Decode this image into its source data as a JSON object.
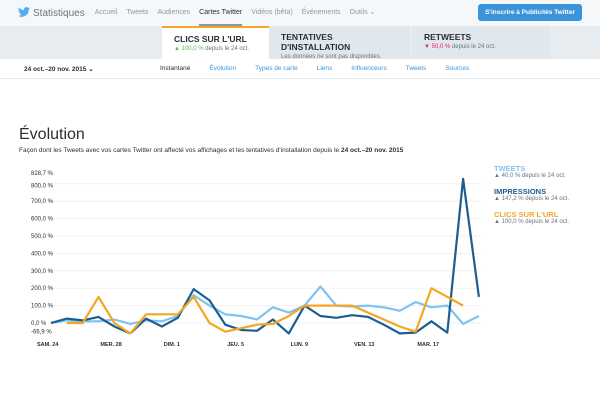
{
  "header": {
    "title": "Statistiques",
    "nav": [
      "Accueil",
      "Tweets",
      "Audiences",
      "Cartes Twitter",
      "Vidéos (bêta)",
      "Événements",
      "Outils ⌄"
    ],
    "active": "Cartes Twitter",
    "cta": "S'inscrire à Publicités Twitter"
  },
  "cards": [
    {
      "title": "CLICS SUR L'URL",
      "delta": "▲ 100,0 %",
      "rest": " depuis le 24 oct."
    },
    {
      "title": "TENTATIVES D'INSTALLATION",
      "rest": "Les données ne sont pas disponibles."
    },
    {
      "title": "RETWEETS",
      "delta": "▼ 50,0 %",
      "rest": " depuis le 24 oct."
    }
  ],
  "subnav": {
    "date": "24 oct.–20 nov. 2015 ⌄",
    "tabs": [
      "Instantané",
      "Évolution",
      "Types de carte",
      "Liens",
      "Influenceurs",
      "Tweets",
      "Sources"
    ]
  },
  "section": {
    "title": "Évolution",
    "desc_pre": "Façon dont les Tweets avec vos cartes Twitter ont affecté vos affichages et les tentatives d'installation depuis le ",
    "desc_bold": "24 oct.–20 nov. 2015"
  },
  "legend": [
    {
      "name": "TWEETS",
      "text": "▲ 40,0 % depuis le 24 oct.",
      "color": "#7fc4f0"
    },
    {
      "name": "IMPRESSIONS",
      "text": "▲ 147,2 % depuis le 24 oct.",
      "color": "#1d5e92"
    },
    {
      "name": "CLICS SUR L'URL",
      "text": "▲ 100,0 % depuis le 24 oct.",
      "color": "#f5a623"
    }
  ],
  "chart_data": {
    "type": "line",
    "ylim": [
      -66.9,
      828.7
    ],
    "yticks": [
      {
        "v": 828.7,
        "l": "828,7 %"
      },
      {
        "v": 800,
        "l": "800,0 %"
      },
      {
        "v": 700,
        "l": "700,0 %"
      },
      {
        "v": 600,
        "l": "600,0 %"
      },
      {
        "v": 500,
        "l": "500,0 %"
      },
      {
        "v": 400,
        "l": "400,0 %"
      },
      {
        "v": 300,
        "l": "300,0 %"
      },
      {
        "v": 200,
        "l": "200,0 %"
      },
      {
        "v": 100,
        "l": "100,0 %"
      },
      {
        "v": 0,
        "l": "0,0 %"
      },
      {
        "v": -66.9,
        "l": "-66,9 %"
      }
    ],
    "xticks": [
      {
        "i": 0,
        "l": "SAM. 24"
      },
      {
        "i": 4,
        "l": "MER. 28"
      },
      {
        "i": 8,
        "l": "DIM. 1"
      },
      {
        "i": 12,
        "l": "JEU. 5"
      },
      {
        "i": 16,
        "l": "LUN. 9"
      },
      {
        "i": 20,
        "l": "VEN. 13"
      },
      {
        "i": 24,
        "l": "MAR. 17"
      }
    ],
    "series": [
      {
        "name": "TWEETS",
        "color": "#7fc4f0",
        "values": [
          0,
          15,
          10,
          10,
          20,
          -5,
          15,
          10,
          40,
          160,
          100,
          50,
          40,
          20,
          90,
          60,
          100,
          210,
          100,
          95,
          100,
          90,
          70,
          120,
          90,
          100,
          -5,
          40
        ]
      },
      {
        "name": "IMPRESSIONS",
        "color": "#1d5e92",
        "values": [
          0,
          25,
          15,
          35,
          -20,
          -60,
          25,
          -20,
          30,
          195,
          130,
          -10,
          -40,
          -45,
          20,
          -60,
          100,
          40,
          30,
          45,
          35,
          -10,
          -60,
          -55,
          10,
          -55,
          828.7,
          150
        ]
      },
      {
        "name": "CLICS SUR L'URL",
        "color": "#f5a623",
        "values": [
          null,
          0,
          0,
          150,
          0,
          -60,
          50,
          50,
          50,
          150,
          0,
          -50,
          -30,
          -10,
          -5,
          40,
          100,
          100,
          100,
          100,
          60,
          20,
          -20,
          -50,
          200,
          150,
          100,
          null
        ]
      }
    ]
  }
}
